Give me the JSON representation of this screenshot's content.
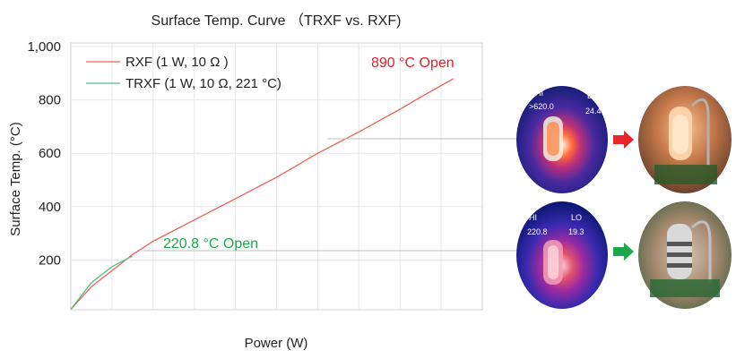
{
  "chart_data": {
    "type": "line",
    "title": "Surface Temp. Curve （TRXF vs. RXF)",
    "xlabel": "Power (W)",
    "ylabel": "Surface Temp. (°C)",
    "ylim": [
      0,
      1000
    ],
    "xlim": [
      0,
      10
    ],
    "yticks": [
      "200",
      "400",
      "600",
      "800",
      "1,000"
    ],
    "ytick_values": [
      200,
      400,
      600,
      800,
      1000
    ],
    "grid": true,
    "legend_position": "top-left",
    "series": [
      {
        "name": "RXF (1 W, 10 Ω )",
        "color": "#f0605a",
        "x": [
          0,
          0.5,
          1.0,
          1.5,
          2.0,
          3.0,
          4.0,
          5.0,
          6.0,
          7.0,
          8.0,
          8.5,
          9.3
        ],
        "y": [
          15,
          100,
          160,
          220,
          270,
          350,
          430,
          510,
          600,
          680,
          765,
          810,
          880
        ]
      },
      {
        "name": "TRXF (1 W, 10 Ω, 221 °C)",
        "color": "#4cbf7e",
        "x": [
          0,
          0.5,
          1.0,
          1.5
        ],
        "y": [
          15,
          115,
          175,
          215
        ]
      }
    ],
    "annotations": [
      {
        "text": "890 °C Open",
        "color": "#e4202a"
      },
      {
        "text": "220.8 °C  Open",
        "color": "#1aa84a"
      }
    ]
  },
  "thermal_top": {
    "hi_label": "HI",
    "hi_value": ">620.0",
    "lo_label": "LO",
    "lo_value": "24.4"
  },
  "thermal_bottom": {
    "hi_label": "HI",
    "hi_value": "220.8",
    "lo_label": "LO",
    "lo_value": "19.3"
  },
  "colors": {
    "red_arrow": "#e8262a",
    "green_arrow": "#1aa84a"
  }
}
